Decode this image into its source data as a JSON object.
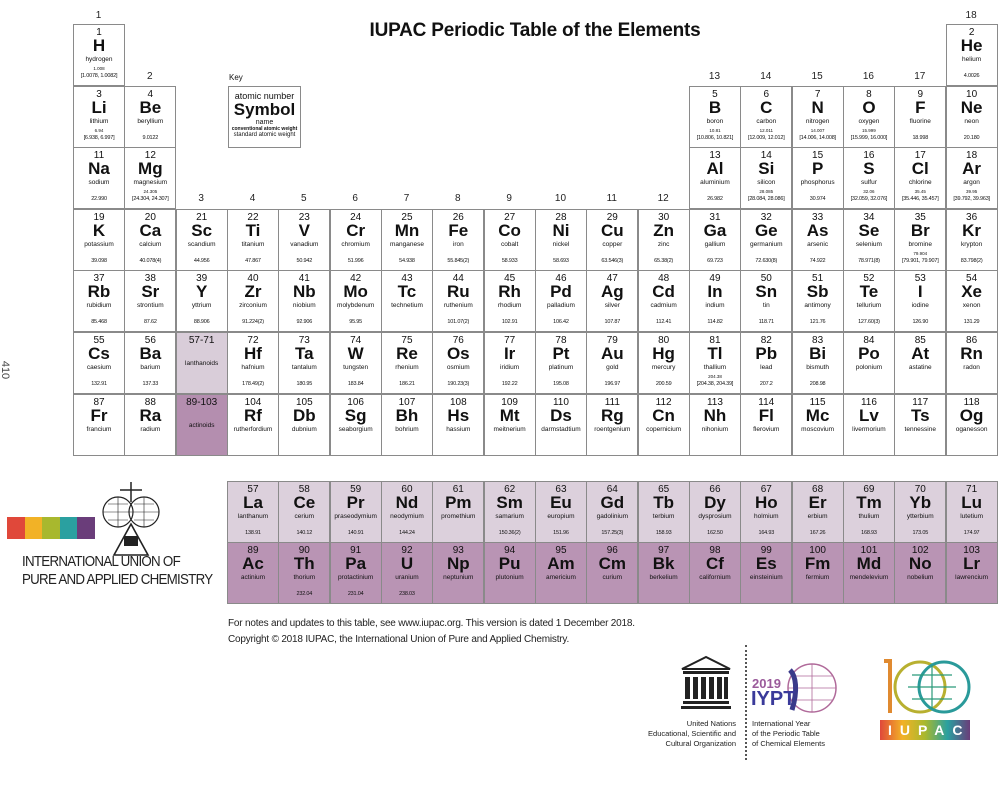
{
  "title": "IUPAC Periodic Table of the Elements",
  "side_number": "410",
  "groups": [
    "1",
    "2",
    "3",
    "4",
    "5",
    "6",
    "7",
    "8",
    "9",
    "10",
    "11",
    "12",
    "13",
    "14",
    "15",
    "16",
    "17",
    "18"
  ],
  "key": {
    "label": "Key",
    "atomic_number": "atomic number",
    "symbol": "Symbol",
    "name": "name",
    "conventional": "conventional atomic weight",
    "standard": "standard atomic weight"
  },
  "placeholders": [
    {
      "range": "57-71",
      "name": "lanthanoids"
    },
    {
      "range": "89-103",
      "name": "actinoids"
    }
  ],
  "elements": [
    [
      "1",
      "H",
      "hydrogen",
      "1.008",
      "[1.0078, 1.0082]"
    ],
    [
      "2",
      "He",
      "helium",
      "",
      "4.0026"
    ],
    [
      "3",
      "Li",
      "lithium",
      "6.94",
      "[6.938, 6.997]"
    ],
    [
      "4",
      "Be",
      "beryllium",
      "",
      "9.0122"
    ],
    [
      "5",
      "B",
      "boron",
      "10.81",
      "[10.806, 10.821]"
    ],
    [
      "6",
      "C",
      "carbon",
      "12.011",
      "[12.009, 12.012]"
    ],
    [
      "7",
      "N",
      "nitrogen",
      "14.007",
      "[14.006, 14.008]"
    ],
    [
      "8",
      "O",
      "oxygen",
      "15.999",
      "[15.999, 16.000]"
    ],
    [
      "9",
      "F",
      "fluorine",
      "",
      "18.998"
    ],
    [
      "10",
      "Ne",
      "neon",
      "",
      "20.180"
    ],
    [
      "11",
      "Na",
      "sodium",
      "",
      "22.990"
    ],
    [
      "12",
      "Mg",
      "magnesium",
      "24.305",
      "[24.304, 24.307]"
    ],
    [
      "13",
      "Al",
      "aluminium",
      "",
      "26.982"
    ],
    [
      "14",
      "Si",
      "silicon",
      "28.085",
      "[28.084, 28.086]"
    ],
    [
      "15",
      "P",
      "phosphorus",
      "",
      "30.974"
    ],
    [
      "16",
      "S",
      "sulfur",
      "32.06",
      "[32.059, 32.076]"
    ],
    [
      "17",
      "Cl",
      "chlorine",
      "35.45",
      "[35.446, 35.457]"
    ],
    [
      "18",
      "Ar",
      "argon",
      "39.95",
      "[39.792, 39.963]"
    ],
    [
      "19",
      "K",
      "potassium",
      "",
      "39.098"
    ],
    [
      "20",
      "Ca",
      "calcium",
      "",
      "40.078(4)"
    ],
    [
      "21",
      "Sc",
      "scandium",
      "",
      "44.956"
    ],
    [
      "22",
      "Ti",
      "titanium",
      "",
      "47.867"
    ],
    [
      "23",
      "V",
      "vanadium",
      "",
      "50.942"
    ],
    [
      "24",
      "Cr",
      "chromium",
      "",
      "51.996"
    ],
    [
      "25",
      "Mn",
      "manganese",
      "",
      "54.938"
    ],
    [
      "26",
      "Fe",
      "iron",
      "",
      "55.845(2)"
    ],
    [
      "27",
      "Co",
      "cobalt",
      "",
      "58.933"
    ],
    [
      "28",
      "Ni",
      "nickel",
      "",
      "58.693"
    ],
    [
      "29",
      "Cu",
      "copper",
      "",
      "63.546(3)"
    ],
    [
      "30",
      "Zn",
      "zinc",
      "",
      "65.38(2)"
    ],
    [
      "31",
      "Ga",
      "gallium",
      "",
      "69.723"
    ],
    [
      "32",
      "Ge",
      "germanium",
      "",
      "72.630(8)"
    ],
    [
      "33",
      "As",
      "arsenic",
      "",
      "74.922"
    ],
    [
      "34",
      "Se",
      "selenium",
      "",
      "78.971(8)"
    ],
    [
      "35",
      "Br",
      "bromine",
      "79.904",
      "[79.901, 79.907]"
    ],
    [
      "36",
      "Kr",
      "krypton",
      "",
      "83.798(2)"
    ],
    [
      "37",
      "Rb",
      "rubidium",
      "",
      "85.468"
    ],
    [
      "38",
      "Sr",
      "strontium",
      "",
      "87.62"
    ],
    [
      "39",
      "Y",
      "yttrium",
      "",
      "88.906"
    ],
    [
      "40",
      "Zr",
      "zirconium",
      "",
      "91.224(2)"
    ],
    [
      "41",
      "Nb",
      "niobium",
      "",
      "92.906"
    ],
    [
      "42",
      "Mo",
      "molybdenum",
      "",
      "95.95"
    ],
    [
      "43",
      "Tc",
      "technetium",
      "",
      ""
    ],
    [
      "44",
      "Ru",
      "ruthenium",
      "",
      "101.07(2)"
    ],
    [
      "45",
      "Rh",
      "rhodium",
      "",
      "102.91"
    ],
    [
      "46",
      "Pd",
      "palladium",
      "",
      "106.42"
    ],
    [
      "47",
      "Ag",
      "silver",
      "",
      "107.87"
    ],
    [
      "48",
      "Cd",
      "cadmium",
      "",
      "112.41"
    ],
    [
      "49",
      "In",
      "indium",
      "",
      "114.82"
    ],
    [
      "50",
      "Sn",
      "tin",
      "",
      "118.71"
    ],
    [
      "51",
      "Sb",
      "antimony",
      "",
      "121.76"
    ],
    [
      "52",
      "Te",
      "tellurium",
      "",
      "127.60(3)"
    ],
    [
      "53",
      "I",
      "iodine",
      "",
      "126.90"
    ],
    [
      "54",
      "Xe",
      "xenon",
      "",
      "131.29"
    ],
    [
      "55",
      "Cs",
      "caesium",
      "",
      "132.91"
    ],
    [
      "56",
      "Ba",
      "barium",
      "",
      "137.33"
    ],
    [
      "57",
      "La",
      "lanthanum",
      "",
      "138.91"
    ],
    [
      "58",
      "Ce",
      "cerium",
      "",
      "140.12"
    ],
    [
      "59",
      "Pr",
      "praseodymium",
      "",
      "140.91"
    ],
    [
      "60",
      "Nd",
      "neodymium",
      "",
      "144.24"
    ],
    [
      "61",
      "Pm",
      "promethium",
      "",
      ""
    ],
    [
      "62",
      "Sm",
      "samarium",
      "",
      "150.36(2)"
    ],
    [
      "63",
      "Eu",
      "europium",
      "",
      "151.96"
    ],
    [
      "64",
      "Gd",
      "gadolinium",
      "",
      "157.25(3)"
    ],
    [
      "65",
      "Tb",
      "terbium",
      "",
      "158.93"
    ],
    [
      "66",
      "Dy",
      "dysprosium",
      "",
      "162.50"
    ],
    [
      "67",
      "Ho",
      "holmium",
      "",
      "164.93"
    ],
    [
      "68",
      "Er",
      "erbium",
      "",
      "167.26"
    ],
    [
      "69",
      "Tm",
      "thulium",
      "",
      "168.93"
    ],
    [
      "70",
      "Yb",
      "ytterbium",
      "",
      "173.05"
    ],
    [
      "71",
      "Lu",
      "lutetium",
      "",
      "174.97"
    ],
    [
      "72",
      "Hf",
      "hafnium",
      "",
      "178.49(2)"
    ],
    [
      "73",
      "Ta",
      "tantalum",
      "",
      "180.95"
    ],
    [
      "74",
      "W",
      "tungsten",
      "",
      "183.84"
    ],
    [
      "75",
      "Re",
      "rhenium",
      "",
      "186.21"
    ],
    [
      "76",
      "Os",
      "osmium",
      "",
      "190.23(3)"
    ],
    [
      "77",
      "Ir",
      "iridium",
      "",
      "192.22"
    ],
    [
      "78",
      "Pt",
      "platinum",
      "",
      "195.08"
    ],
    [
      "79",
      "Au",
      "gold",
      "",
      "196.97"
    ],
    [
      "80",
      "Hg",
      "mercury",
      "",
      "200.59"
    ],
    [
      "81",
      "Tl",
      "thallium",
      "204.38",
      "[204.38, 204.39]"
    ],
    [
      "82",
      "Pb",
      "lead",
      "",
      "207.2"
    ],
    [
      "83",
      "Bi",
      "bismuth",
      "",
      "208.98"
    ],
    [
      "84",
      "Po",
      "polonium",
      "",
      ""
    ],
    [
      "85",
      "At",
      "astatine",
      "",
      ""
    ],
    [
      "86",
      "Rn",
      "radon",
      "",
      ""
    ],
    [
      "87",
      "Fr",
      "francium",
      "",
      ""
    ],
    [
      "88",
      "Ra",
      "radium",
      "",
      ""
    ],
    [
      "89",
      "Ac",
      "actinium",
      "",
      ""
    ],
    [
      "90",
      "Th",
      "thorium",
      "",
      "232.04"
    ],
    [
      "91",
      "Pa",
      "protactinium",
      "",
      "231.04"
    ],
    [
      "92",
      "U",
      "uranium",
      "",
      "238.03"
    ],
    [
      "93",
      "Np",
      "neptunium",
      "",
      ""
    ],
    [
      "94",
      "Pu",
      "plutonium",
      "",
      ""
    ],
    [
      "95",
      "Am",
      "americium",
      "",
      ""
    ],
    [
      "96",
      "Cm",
      "curium",
      "",
      ""
    ],
    [
      "97",
      "Bk",
      "berkelium",
      "",
      ""
    ],
    [
      "98",
      "Cf",
      "californium",
      "",
      ""
    ],
    [
      "99",
      "Es",
      "einsteinium",
      "",
      ""
    ],
    [
      "100",
      "Fm",
      "fermium",
      "",
      ""
    ],
    [
      "101",
      "Md",
      "mendelevium",
      "",
      ""
    ],
    [
      "102",
      "No",
      "nobelium",
      "",
      ""
    ],
    [
      "103",
      "Lr",
      "lawrencium",
      "",
      ""
    ],
    [
      "104",
      "Rf",
      "rutherfordium",
      "",
      ""
    ],
    [
      "105",
      "Db",
      "dubnium",
      "",
      ""
    ],
    [
      "106",
      "Sg",
      "seaborgium",
      "",
      ""
    ],
    [
      "107",
      "Bh",
      "bohrium",
      "",
      ""
    ],
    [
      "108",
      "Hs",
      "hassium",
      "",
      ""
    ],
    [
      "109",
      "Mt",
      "meitnerium",
      "",
      ""
    ],
    [
      "110",
      "Ds",
      "darmstadtium",
      "",
      ""
    ],
    [
      "111",
      "Rg",
      "roentgenium",
      "",
      ""
    ],
    [
      "112",
      "Cn",
      "copernicium",
      "",
      ""
    ],
    [
      "113",
      "Nh",
      "nihonium",
      "",
      ""
    ],
    [
      "114",
      "Fl",
      "flerovium",
      "",
      ""
    ],
    [
      "115",
      "Mc",
      "moscovium",
      "",
      ""
    ],
    [
      "116",
      "Lv",
      "livermorium",
      "",
      ""
    ],
    [
      "117",
      "Ts",
      "tennessine",
      "",
      ""
    ],
    [
      "118",
      "Og",
      "oganesson",
      "",
      ""
    ]
  ],
  "colors": {
    "lanthanoid": "#dcd0dc",
    "actinoid": "#b994b4",
    "border": "#8a8a8a",
    "rainbow": [
      "#e0483a",
      "#f2b226",
      "#a8b82e",
      "#2aa0a0",
      "#6a3d7a"
    ]
  },
  "org": {
    "line1": "INTERNATIONAL UNION OF",
    "line2": "PURE AND APPLIED CHEMISTRY"
  },
  "footer": {
    "line1": "For notes and updates to this table, see www.iupac.org. This version is dated 1 December 2018.",
    "line2": "Copyright © 2018 IUPAC, the International Union of Pure and Applied Chemistry."
  },
  "logos": {
    "unesco_text": [
      "United Nations",
      "Educational, Scientific and",
      "Cultural Organization"
    ],
    "iypt_year": "2019",
    "iypt": "IYPT",
    "iypt_text": [
      "International Year",
      "of the Periodic Table",
      "of Chemical Elements"
    ],
    "iupac100": "IUPAC"
  }
}
